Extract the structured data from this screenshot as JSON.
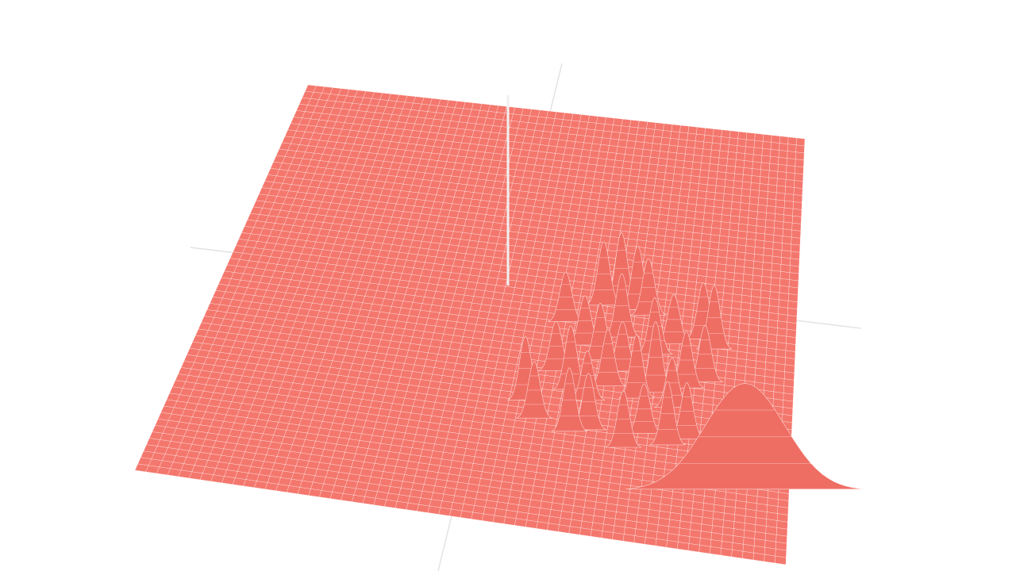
{
  "chart_data": {
    "type": "surface",
    "color": "#f4776d",
    "grid": true,
    "grid_color": "#ffffff",
    "peaks": {
      "x": [
        0.6,
        0.66,
        0.69,
        0.72,
        0.74,
        0.7,
        0.64,
        0.67,
        0.71,
        0.76,
        0.79,
        0.84,
        0.86,
        0.85,
        0.6,
        0.63,
        0.66,
        0.69,
        0.74,
        0.77,
        0.8,
        0.82,
        0.56,
        0.58,
        0.64,
        0.67,
        0.73,
        0.76,
        0.8,
        0.83,
        0.93
      ],
      "y": [
        0.5,
        0.45,
        0.44,
        0.45,
        0.46,
        0.52,
        0.55,
        0.58,
        0.6,
        0.55,
        0.52,
        0.5,
        0.52,
        0.6,
        0.62,
        0.66,
        0.68,
        0.64,
        0.66,
        0.64,
        0.67,
        0.62,
        0.7,
        0.74,
        0.76,
        0.75,
        0.78,
        0.74,
        0.76,
        0.74,
        0.84
      ],
      "z": [
        0.35,
        0.45,
        0.5,
        0.45,
        0.4,
        0.45,
        0.35,
        0.4,
        0.35,
        0.4,
        0.35,
        0.4,
        0.45,
        0.4,
        0.35,
        0.45,
        0.35,
        0.4,
        0.45,
        0.5,
        0.35,
        0.4,
        0.45,
        0.4,
        0.45,
        0.4,
        0.4,
        0.35,
        0.45,
        0.4,
        0.75
      ],
      "sigma": [
        0.012,
        0.012,
        0.012,
        0.012,
        0.012,
        0.012,
        0.012,
        0.012,
        0.012,
        0.012,
        0.012,
        0.012,
        0.012,
        0.012,
        0.012,
        0.012,
        0.012,
        0.012,
        0.012,
        0.012,
        0.012,
        0.012,
        0.012,
        0.012,
        0.012,
        0.012,
        0.012,
        0.012,
        0.012,
        0.012,
        0.08
      ]
    }
  }
}
